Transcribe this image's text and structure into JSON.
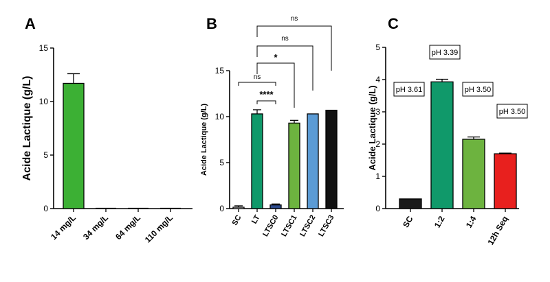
{
  "chart_data": [
    {
      "panel": "A",
      "type": "bar",
      "ylabel": "Acide Lactique (g/L)",
      "ylim": [
        0,
        15
      ],
      "yticks": [
        0,
        5,
        10,
        15
      ],
      "categories": [
        "14 mg/L",
        "34 mg/L",
        "64 mg/L",
        "110 mg/L"
      ],
      "values": [
        11.7,
        0,
        0,
        0
      ],
      "errors": [
        0.9,
        0,
        0,
        0
      ],
      "colors": [
        "#3cb034",
        "#3cb034",
        "#3cb034",
        "#3cb034"
      ]
    },
    {
      "panel": "B",
      "type": "bar",
      "ylabel": "Acide Lactique (g/L)",
      "ylim": [
        0,
        15
      ],
      "yticks": [
        0,
        5,
        10,
        15
      ],
      "categories": [
        "SC",
        "LT",
        "LTSC0",
        "LTSC1",
        "LTSC2",
        "LTSC3"
      ],
      "values": [
        0.15,
        10.3,
        0.4,
        9.3,
        10.3,
        10.7
      ],
      "errors": [
        0.15,
        0.45,
        0.1,
        0.3,
        0,
        0
      ],
      "colors": [
        "#ffffff",
        "#10996a",
        "#2c4a8c",
        "#6db33f",
        "#5b9bd5",
        "#111111"
      ],
      "significance": [
        {
          "from": "SC",
          "to": "LTSC0",
          "label": "ns"
        },
        {
          "from": "LT",
          "to": "LTSC0",
          "label": "****"
        },
        {
          "from": "LT",
          "to": "LTSC1",
          "label": "*"
        },
        {
          "from": "LT",
          "to": "LTSC2",
          "label": "ns"
        },
        {
          "from": "LT",
          "to": "LTSC3",
          "label": "ns"
        }
      ]
    },
    {
      "panel": "C",
      "type": "bar",
      "ylabel": "Acide Lactique (g/L)",
      "ylim": [
        0,
        5
      ],
      "yticks": [
        0,
        1,
        2,
        3,
        4,
        5
      ],
      "categories": [
        "SC",
        "1:2",
        "1:4",
        "12h Seq"
      ],
      "values": [
        0.3,
        3.93,
        2.15,
        1.7
      ],
      "errors": [
        0,
        0.08,
        0.07,
        0.02
      ],
      "colors": [
        "#1a1a1a",
        "#10996a",
        "#6db33f",
        "#e8201e"
      ],
      "annotations": [
        "pH 3.61",
        "pH 3.39",
        "pH 3.50",
        "pH 3.50"
      ]
    }
  ]
}
